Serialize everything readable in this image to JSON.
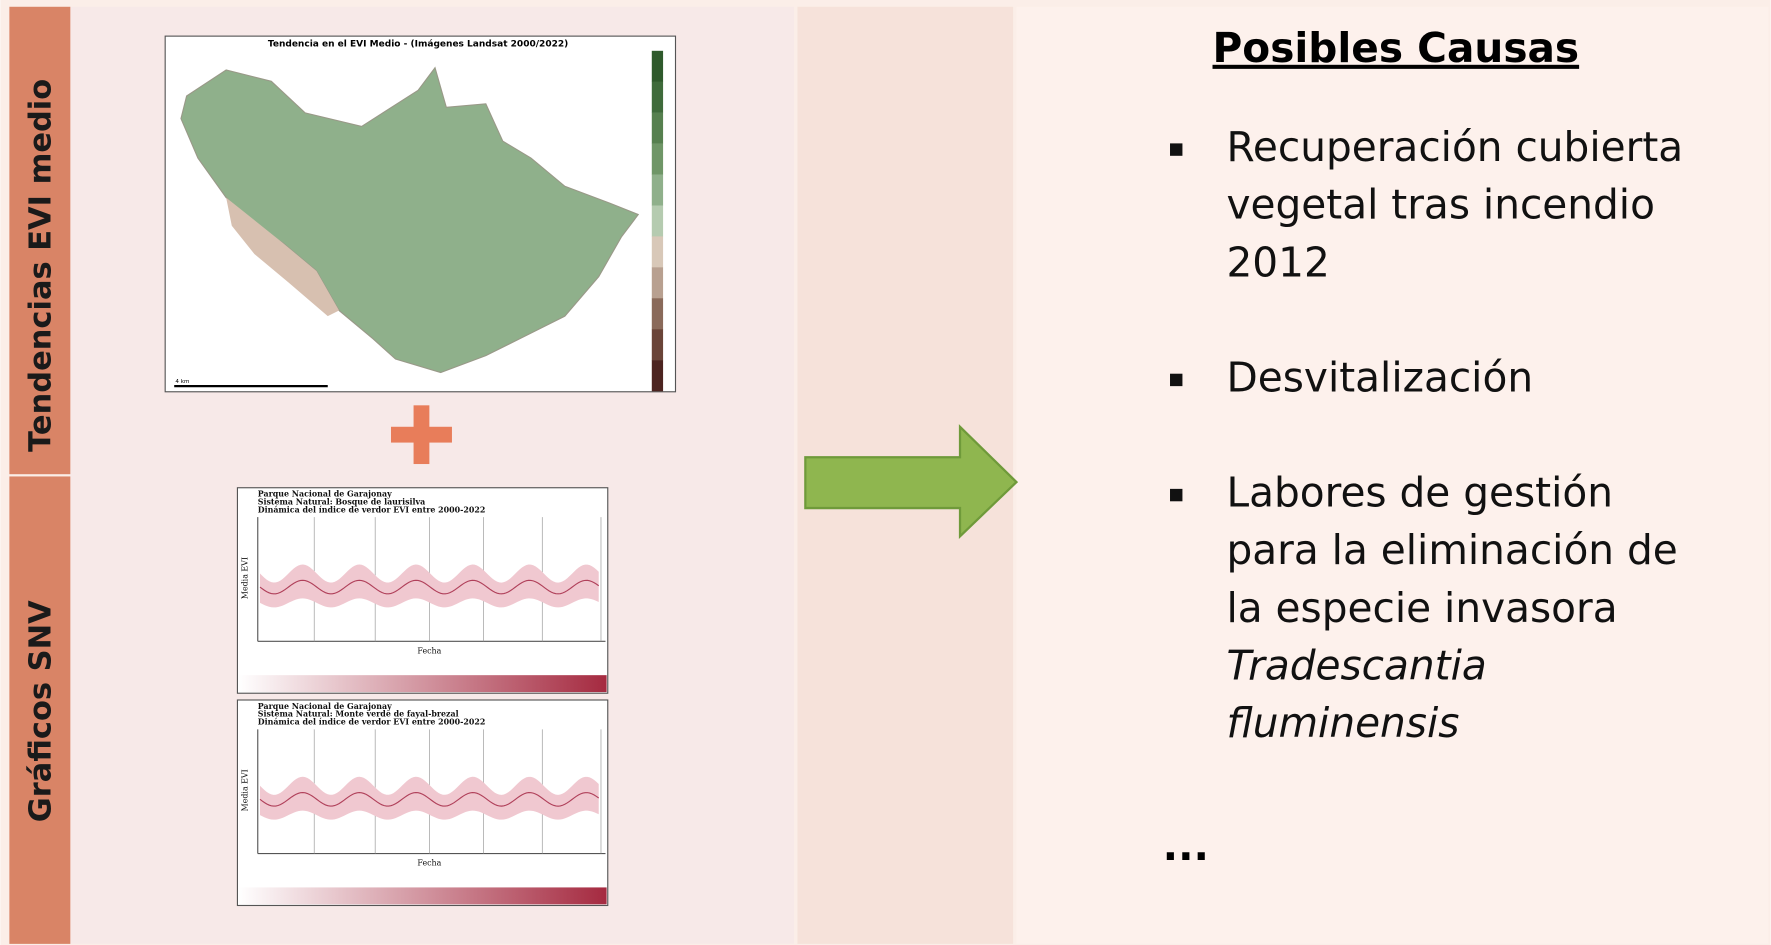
{
  "sidebar": {
    "top_label": "Tendencias EVI medio",
    "bottom_label": "Gráficos SNV"
  },
  "map": {
    "title": "Tendencia en el EVI Medio - (Imágenes Landsat 2000/2022)",
    "scale_label": "4 km"
  },
  "charts": [
    {
      "title_lines": [
        "Parque Nacional de Garajonay",
        "Sistema Natural: Bosque de laurisilva",
        "Dinámica del índice de verdor EVI entre 2000-2022"
      ],
      "y_label": "Media EVI",
      "x_label": "Fecha"
    },
    {
      "title_lines": [
        "Parque Nacional de Garajonay",
        "Sistema Natural: Monte verde de fayal-brezal",
        "Dinámica del índice de verdor EVI entre 2000-2022"
      ],
      "y_label": "Media EVI",
      "x_label": "Fecha"
    }
  ],
  "causes": {
    "title": "Posibles Causas",
    "items": [
      {
        "lines": [
          "Recuperación cubierta",
          "vegetal tras incendio",
          "2012"
        ],
        "italic_lines": []
      },
      {
        "lines": [
          "Desvitalización"
        ],
        "italic_lines": []
      },
      {
        "lines": [
          "Labores de gestión",
          "para la eliminación de",
          "la especie invasora"
        ],
        "italic_lines": [
          "Tradescantia",
          "fluminensis"
        ]
      }
    ],
    "ellipsis": "..."
  }
}
